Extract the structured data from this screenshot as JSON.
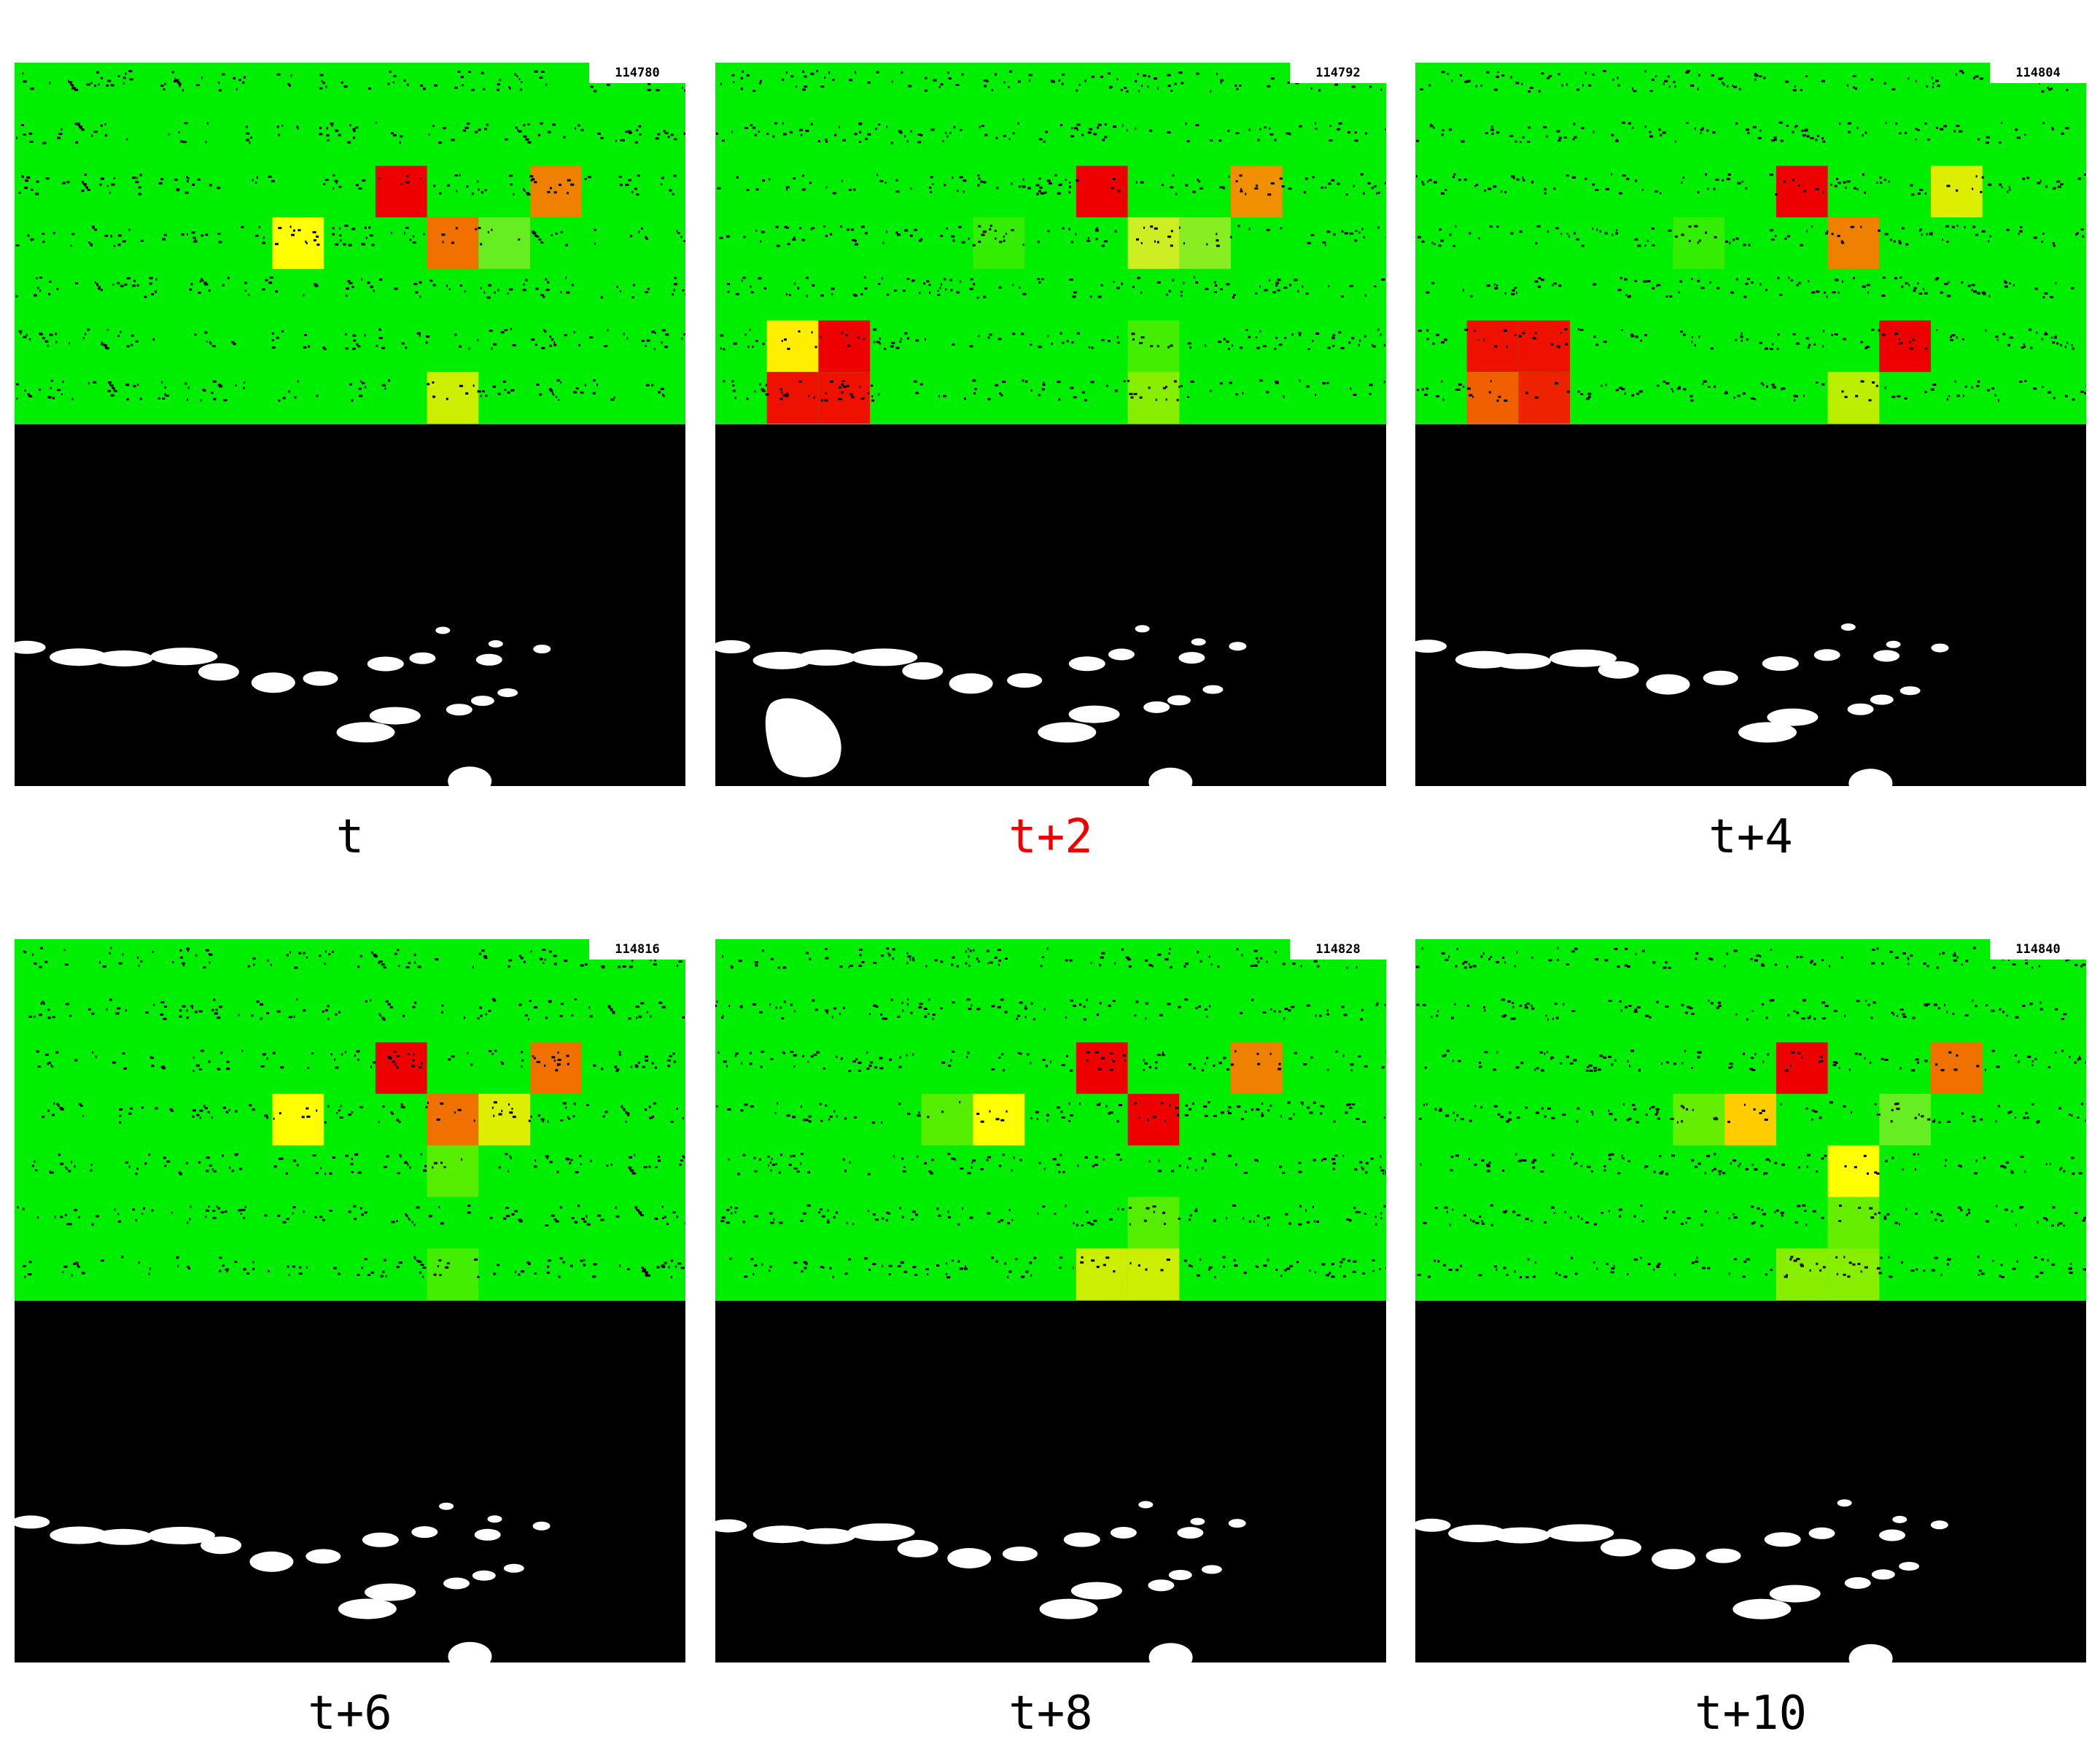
{
  "frames": [
    {
      "frame_number": "114780",
      "caption": "t",
      "caption_color": "#000000",
      "heat_cells": [
        {
          "col": 7,
          "row": 2,
          "color": "#ee0000"
        },
        {
          "col": 10,
          "row": 2,
          "color": "#f08000"
        },
        {
          "col": 5,
          "row": 3,
          "color": "#ffff00"
        },
        {
          "col": 8,
          "row": 3,
          "color": "#f07000"
        },
        {
          "col": 9,
          "row": 3,
          "color": "#66ee22"
        },
        {
          "col": 8,
          "row": 6,
          "color": "#ccee00"
        }
      ]
    },
    {
      "frame_number": "114792",
      "caption": "t+2",
      "caption_color": "#ee0000",
      "heat_cells": [
        {
          "col": 7,
          "row": 2,
          "color": "#ee0000"
        },
        {
          "col": 10,
          "row": 2,
          "color": "#f09000"
        },
        {
          "col": 5,
          "row": 3,
          "color": "#33ee00"
        },
        {
          "col": 8,
          "row": 3,
          "color": "#ccee22"
        },
        {
          "col": 9,
          "row": 3,
          "color": "#88ee22"
        },
        {
          "col": 1,
          "row": 5,
          "color": "#ffee00"
        },
        {
          "col": 2,
          "row": 5,
          "color": "#ee0000"
        },
        {
          "col": 1,
          "row": 6,
          "color": "#ee1100"
        },
        {
          "col": 2,
          "row": 6,
          "color": "#ee1100"
        },
        {
          "col": 8,
          "row": 5,
          "color": "#44ee00"
        },
        {
          "col": 8,
          "row": 6,
          "color": "#88ee00"
        }
      ]
    },
    {
      "frame_number": "114804",
      "caption": "t+4",
      "caption_color": "#000000",
      "heat_cells": [
        {
          "col": 7,
          "row": 2,
          "color": "#ee0000"
        },
        {
          "col": 10,
          "row": 2,
          "color": "#ddee00"
        },
        {
          "col": 5,
          "row": 3,
          "color": "#33ee00"
        },
        {
          "col": 8,
          "row": 3,
          "color": "#f08000"
        },
        {
          "col": 1,
          "row": 5,
          "color": "#ee1100"
        },
        {
          "col": 2,
          "row": 5,
          "color": "#ee1100"
        },
        {
          "col": 1,
          "row": 6,
          "color": "#f06000"
        },
        {
          "col": 2,
          "row": 6,
          "color": "#ee2200"
        },
        {
          "col": 9,
          "row": 5,
          "color": "#ee0000"
        },
        {
          "col": 8,
          "row": 6,
          "color": "#bbee00"
        }
      ]
    },
    {
      "frame_number": "114816",
      "caption": "t+6",
      "caption_color": "#000000",
      "heat_cells": [
        {
          "col": 7,
          "row": 2,
          "color": "#ee0000"
        },
        {
          "col": 10,
          "row": 2,
          "color": "#f07000"
        },
        {
          "col": 5,
          "row": 3,
          "color": "#ffff00"
        },
        {
          "col": 8,
          "row": 3,
          "color": "#f07000"
        },
        {
          "col": 9,
          "row": 3,
          "color": "#ddee00"
        },
        {
          "col": 8,
          "row": 4,
          "color": "#55ee00"
        },
        {
          "col": 8,
          "row": 6,
          "color": "#44ee00"
        }
      ]
    },
    {
      "frame_number": "114828",
      "caption": "t+8",
      "caption_color": "#000000",
      "heat_cells": [
        {
          "col": 7,
          "row": 2,
          "color": "#ee0000"
        },
        {
          "col": 10,
          "row": 2,
          "color": "#f08000"
        },
        {
          "col": 4,
          "row": 3,
          "color": "#55ee00"
        },
        {
          "col": 5,
          "row": 3,
          "color": "#ffff00"
        },
        {
          "col": 8,
          "row": 3,
          "color": "#ee0000"
        },
        {
          "col": 8,
          "row": 5,
          "color": "#55ee00"
        },
        {
          "col": 7,
          "row": 6,
          "color": "#ccee00"
        },
        {
          "col": 8,
          "row": 6,
          "color": "#ccee00"
        }
      ]
    },
    {
      "frame_number": "114840",
      "caption": "t+10",
      "caption_color": "#000000",
      "heat_cells": [
        {
          "col": 7,
          "row": 2,
          "color": "#ee0000"
        },
        {
          "col": 10,
          "row": 2,
          "color": "#f07000"
        },
        {
          "col": 5,
          "row": 3,
          "color": "#66ee00"
        },
        {
          "col": 6,
          "row": 3,
          "color": "#ffcc00"
        },
        {
          "col": 9,
          "row": 3,
          "color": "#66ee22"
        },
        {
          "col": 8,
          "row": 4,
          "color": "#ffff00"
        },
        {
          "col": 8,
          "row": 5,
          "color": "#66ee00"
        },
        {
          "col": 7,
          "row": 6,
          "color": "#88ee00"
        },
        {
          "col": 8,
          "row": 6,
          "color": "#88ee00"
        }
      ]
    }
  ]
}
